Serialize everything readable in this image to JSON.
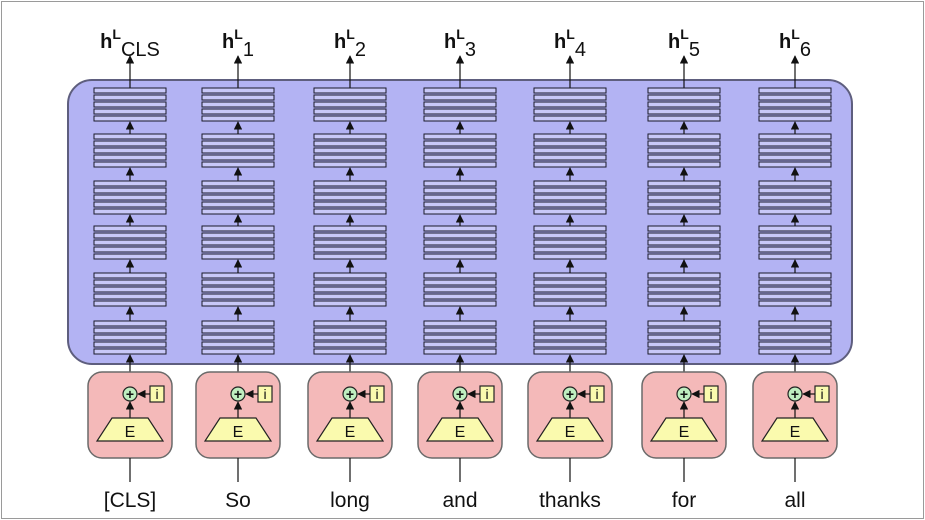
{
  "diagram": {
    "tokens": [
      "[CLS]",
      "So",
      "long",
      "and",
      "thanks",
      "for",
      "all"
    ],
    "outputs": [
      {
        "base": "h",
        "sup": "L",
        "sub": "CLS"
      },
      {
        "base": "h",
        "sup": "L",
        "sub": "1"
      },
      {
        "base": "h",
        "sup": "L",
        "sub": "2"
      },
      {
        "base": "h",
        "sup": "L",
        "sub": "3"
      },
      {
        "base": "h",
        "sup": "L",
        "sub": "4"
      },
      {
        "base": "h",
        "sup": "L",
        "sub": "5"
      },
      {
        "base": "h",
        "sup": "L",
        "sub": "6"
      }
    ],
    "embedding_label": "E",
    "position_label": "i",
    "plus_symbol": "+",
    "layer_count": 6,
    "colors": {
      "encoder_fill": "#b3b3f3",
      "encoder_stroke": "#5e5e7e",
      "embed_box_fill": "#f4b9b9",
      "embed_box_stroke": "#6a6a6a",
      "trapezoid_fill": "#fafaae",
      "plus_fill": "#bfeec0",
      "index_fill": "#fafaae"
    }
  }
}
